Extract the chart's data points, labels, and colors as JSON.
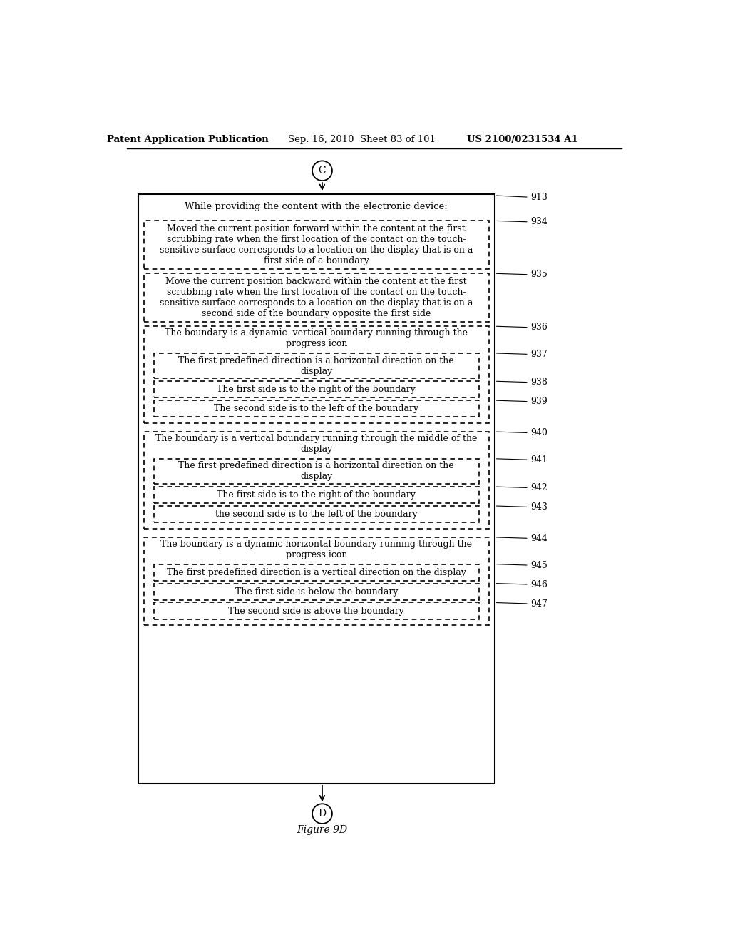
{
  "header_left": "Patent Application Publication",
  "header_mid": "Sep. 16, 2010  Sheet 83 of 101",
  "header_right": "US 2100/0231534 A1",
  "figure_label": "Figure 9D",
  "top_connector": "C",
  "bottom_connector": "D"
}
